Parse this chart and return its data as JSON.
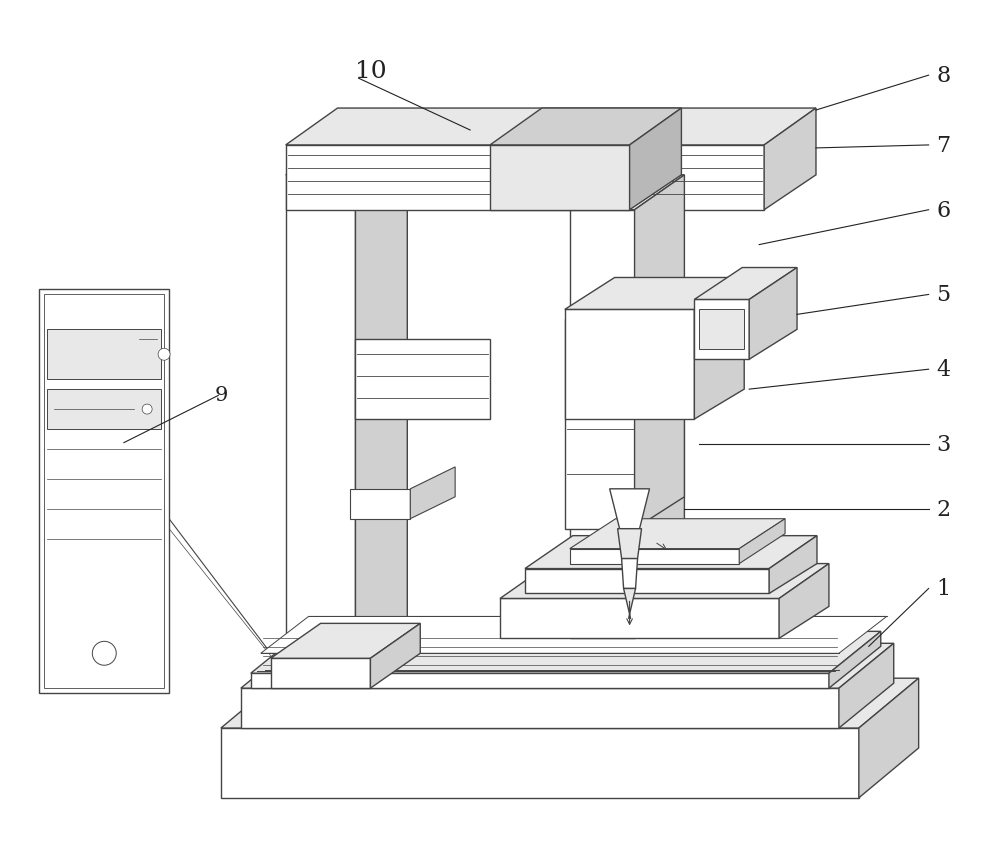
{
  "background_color": "#ffffff",
  "line_color": "#444444",
  "line_width": 1.0,
  "figure_size": [
    10.0,
    8.62
  ],
  "dpi": 100,
  "label_fontsize": 15,
  "face_white": "#ffffff",
  "face_light": "#e8e8e8",
  "face_mid": "#d0d0d0",
  "face_dark": "#b8b8b8",
  "label_color": "#222222"
}
